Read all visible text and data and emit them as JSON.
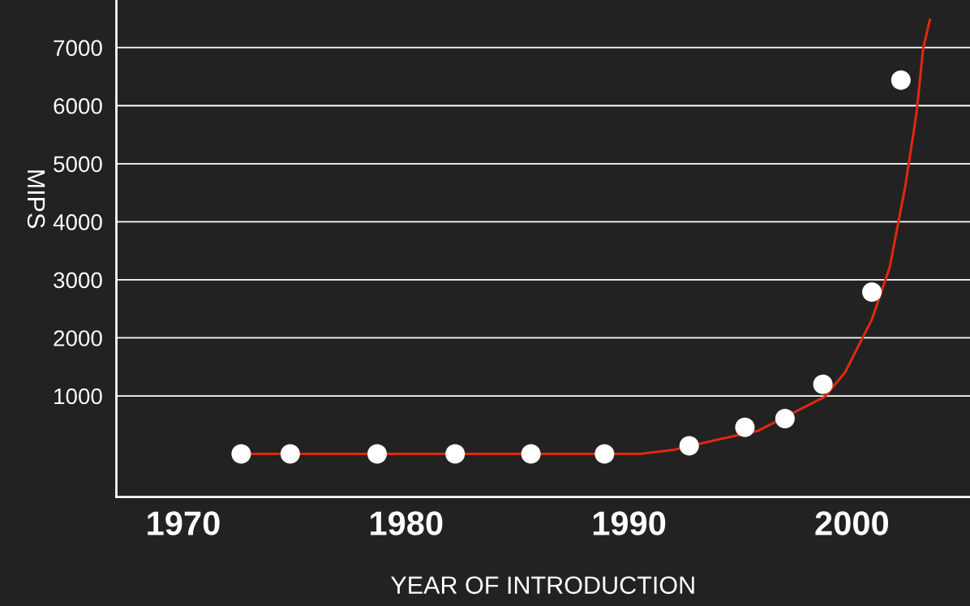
{
  "chart_data": {
    "type": "scatter",
    "xlabel": "YEAR OF INTRODUCTION",
    "ylabel": "MIPS",
    "xlim": [
      1967,
      2005.3
    ],
    "xticks": [
      1970,
      1980,
      1990,
      2000
    ],
    "ylim": [
      -740,
      7820
    ],
    "yticks": [
      1000,
      2000,
      3000,
      4000,
      5000,
      6000,
      7000
    ],
    "grid": "y",
    "marker": "circle",
    "series": [
      {
        "color": "#ffffff",
        "x": [
          1972.6,
          1974.8,
          1978.7,
          1982.2,
          1985.6,
          1988.9,
          1992.7,
          1995.2,
          1997.0,
          1998.7,
          2000.9,
          2002.2
        ],
        "values": [
          0,
          0,
          0,
          0,
          0,
          0,
          140,
          460,
          610,
          1200,
          2790,
          6440
        ]
      },
      {
        "type": "line",
        "marker": "none",
        "color": "#e0280f",
        "x": [
          1973.0,
          1985.0,
          1990.5,
          1992.0,
          1994.0,
          1995.8,
          1998.8,
          1999.7,
          2000.9,
          2001.7,
          2002.4,
          2002.9,
          2003.2,
          2003.5
        ],
        "values": [
          0,
          0,
          0,
          70,
          250,
          400,
          990,
          1410,
          2320,
          3220,
          4620,
          5870,
          6990,
          7480
        ]
      }
    ]
  }
}
